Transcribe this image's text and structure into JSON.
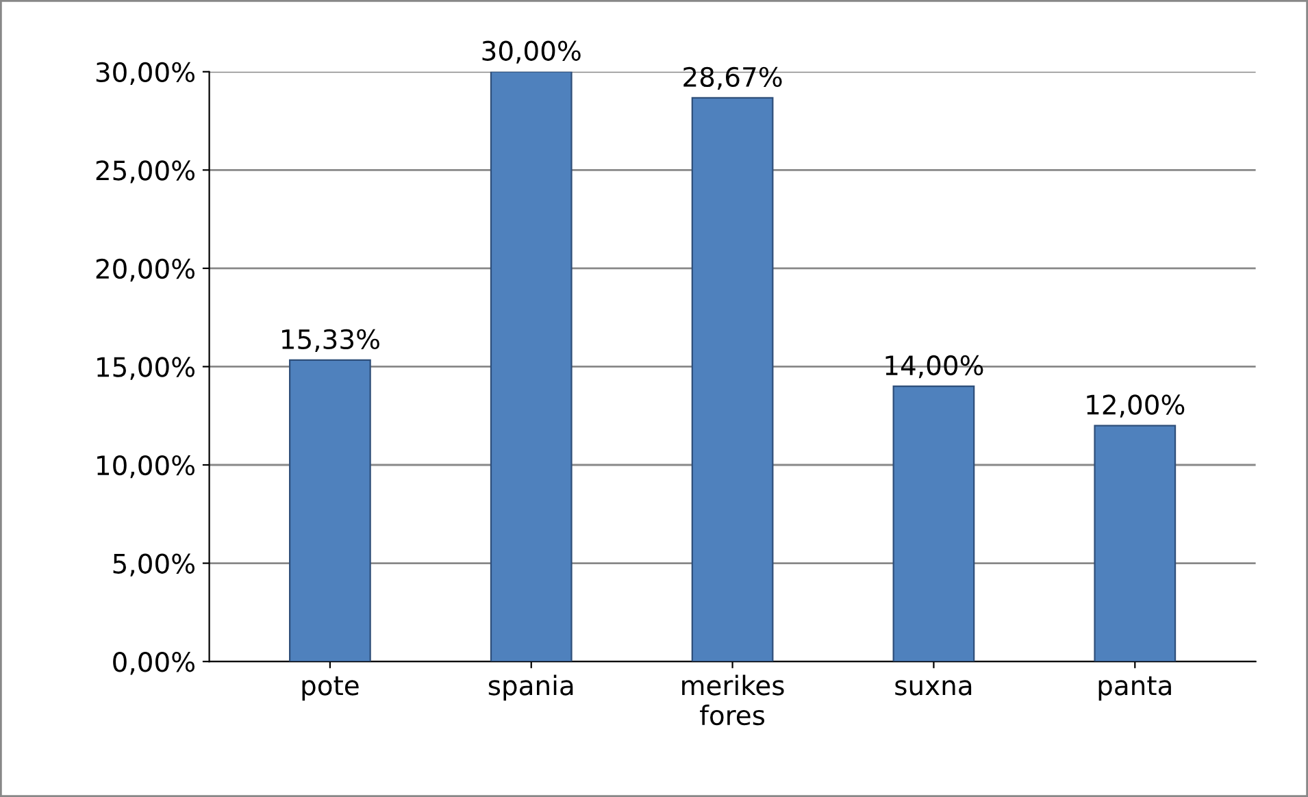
{
  "chart_data": {
    "type": "bar",
    "categories": [
      "pote",
      "spania",
      "merikes\nfores",
      "suxna",
      "panta"
    ],
    "values": [
      15.33,
      30.0,
      28.67,
      14.0,
      12.0
    ],
    "value_labels": [
      "15,33%",
      "30,00%",
      "28,67%",
      "14,00%",
      "12,00%"
    ],
    "color": "#4f81bd",
    "ylim": [
      0,
      30
    ],
    "yticks": [
      {
        "value": 0,
        "label": "0,00%"
      },
      {
        "value": 5,
        "label": "5,00%"
      },
      {
        "value": 10,
        "label": "10,00%"
      },
      {
        "value": 15,
        "label": "15,00%"
      },
      {
        "value": 20,
        "label": "20,00%"
      },
      {
        "value": 25,
        "label": "25,00%"
      },
      {
        "value": 30,
        "label": "30,00%"
      }
    ],
    "grid": "y"
  }
}
